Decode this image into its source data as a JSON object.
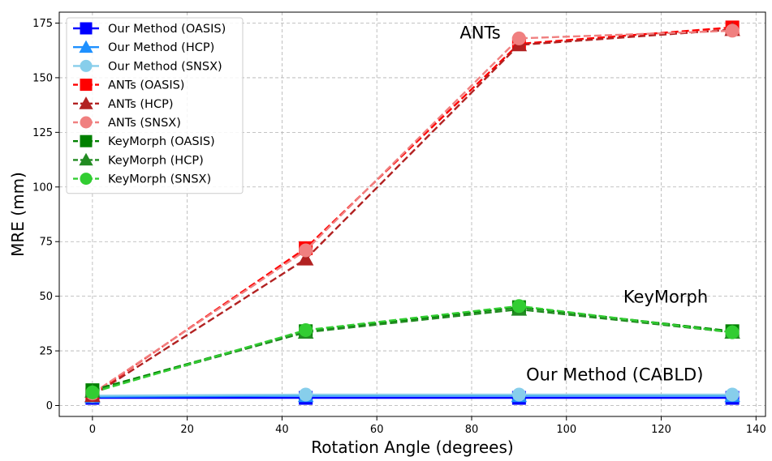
{
  "chart_data": {
    "type": "line",
    "title": "",
    "xlabel": "Rotation Angle (degrees)",
    "ylabel": "MRE (mm)",
    "xlim": [
      -7,
      142
    ],
    "ylim": [
      -5,
      180
    ],
    "xticks": [
      0,
      20,
      40,
      60,
      80,
      100,
      120,
      140
    ],
    "yticks": [
      0,
      25,
      50,
      75,
      100,
      125,
      150,
      175
    ],
    "grid": true,
    "legend_position": "upper-left",
    "x": [
      0,
      45,
      90,
      135
    ],
    "series": [
      {
        "name": "Our Method (OASIS)",
        "values": [
          3.5,
          3.5,
          3.5,
          3.5
        ],
        "color": "#0000ff",
        "marker": "square",
        "dash": "solid"
      },
      {
        "name": "Our Method (HCP)",
        "values": [
          4.0,
          4.5,
          4.5,
          4.5
        ],
        "color": "#1e90ff",
        "marker": "triangle",
        "dash": "solid"
      },
      {
        "name": "Our Method (SNSX)",
        "values": [
          4.5,
          5.0,
          5.0,
          5.0
        ],
        "color": "#87ceeb",
        "marker": "circle",
        "dash": "solid"
      },
      {
        "name": "ANTs (OASIS)",
        "values": [
          5.0,
          72.0,
          165.5,
          173.0
        ],
        "color": "#ff0000",
        "marker": "square",
        "dash": "dashed"
      },
      {
        "name": "ANTs (HCP)",
        "values": [
          4.5,
          67.0,
          165.0,
          172.0
        ],
        "color": "#b22222",
        "marker": "triangle",
        "dash": "dashed"
      },
      {
        "name": "ANTs (SNSX)",
        "values": [
          5.5,
          71.0,
          168.0,
          171.5
        ],
        "color": "#f08080",
        "marker": "circle",
        "dash": "dashed"
      },
      {
        "name": "KeyMorph (OASIS)",
        "values": [
          7.0,
          34.0,
          45.0,
          34.0
        ],
        "color": "#008000",
        "marker": "square",
        "dash": "dashed"
      },
      {
        "name": "KeyMorph (HCP)",
        "values": [
          6.5,
          33.5,
          44.0,
          33.5
        ],
        "color": "#228b22",
        "marker": "triangle",
        "dash": "dashed"
      },
      {
        "name": "KeyMorph (SNSX)",
        "values": [
          6.0,
          34.5,
          45.5,
          33.5
        ],
        "color": "#32cd32",
        "marker": "circle",
        "dash": "dashed"
      }
    ],
    "annotations": [
      {
        "text": "ANTs",
        "x": 77.5,
        "y": 168
      },
      {
        "text": "KeyMorph",
        "x": 112,
        "y": 47
      },
      {
        "text": "Our Method (CABLD)",
        "x": 91.5,
        "y": 11.5
      }
    ]
  }
}
